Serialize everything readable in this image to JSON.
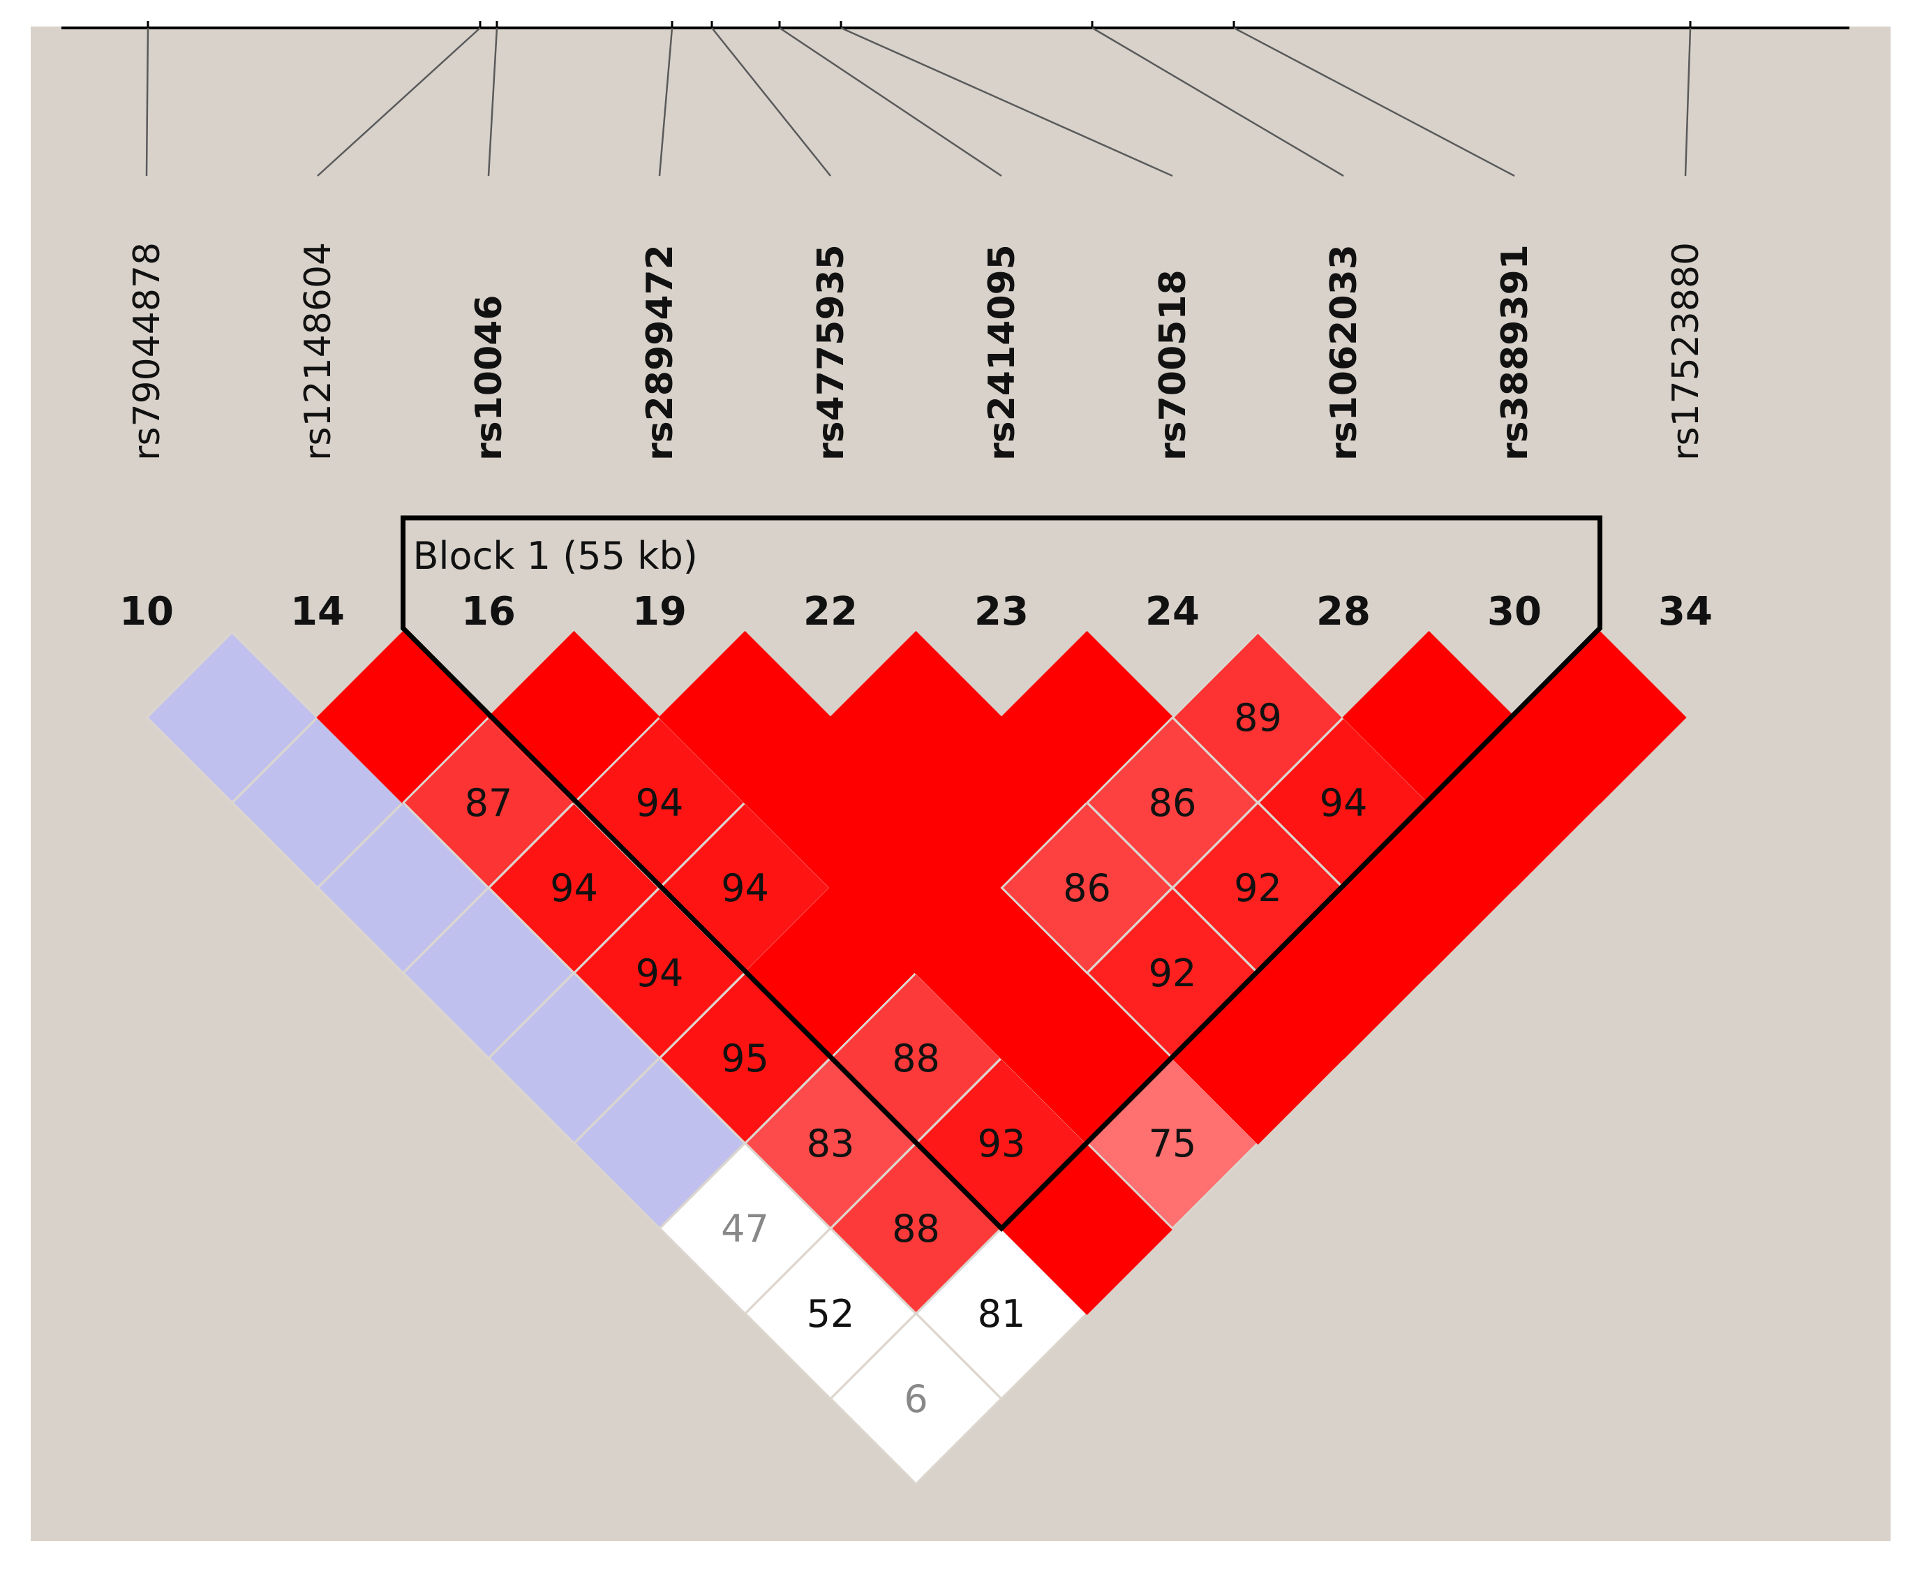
{
  "snps": [
    {
      "name": "rs79044878",
      "index": "10",
      "in_block": false
    },
    {
      "name": "rs12148604",
      "index": "14",
      "in_block": false
    },
    {
      "name": "rs10046",
      "index": "16",
      "in_block": true
    },
    {
      "name": "rs2899472",
      "index": "19",
      "in_block": true
    },
    {
      "name": "rs4775935",
      "index": "22",
      "in_block": true
    },
    {
      "name": "rs2414095",
      "index": "23",
      "in_block": true
    },
    {
      "name": "rs700518",
      "index": "24",
      "in_block": true
    },
    {
      "name": "rs1062033",
      "index": "28",
      "in_block": true
    },
    {
      "name": "rs3889391",
      "index": "30",
      "in_block": true
    },
    {
      "name": "rs17523880",
      "index": "34",
      "in_block": false
    }
  ],
  "block": {
    "label": "Block 1 (55 kb)",
    "first": 2,
    "last": 8
  },
  "colors": {
    "background": "#d8d2cb",
    "strong_ld": "#ff0000",
    "low_lod": "#c0c0ee",
    "weak": "#ffffff",
    "value_light": "#888888",
    "value_dark": "#111111"
  },
  "ld_cells": [
    {
      "i": 0,
      "j": 1,
      "c": "low_lod"
    },
    {
      "i": 0,
      "j": 2,
      "c": "low_lod"
    },
    {
      "i": 0,
      "j": 3,
      "c": "low_lod"
    },
    {
      "i": 0,
      "j": 4,
      "c": "low_lod"
    },
    {
      "i": 0,
      "j": 5,
      "c": "low_lod"
    },
    {
      "i": 0,
      "j": 6,
      "c": "low_lod"
    },
    {
      "i": 0,
      "j": 7,
      "c": "weak",
      "v": "47",
      "vc": "value_light"
    },
    {
      "i": 0,
      "j": 8,
      "c": "weak",
      "v": "52",
      "vc": "value_dark"
    },
    {
      "i": 0,
      "j": 9,
      "c": "weak",
      "v": "6",
      "vc": "value_light"
    },
    {
      "i": 1,
      "j": 2,
      "c": "strong_ld"
    },
    {
      "i": 1,
      "j": 3,
      "c": "#fd3434",
      "v": "87"
    },
    {
      "i": 1,
      "j": 4,
      "c": "#ff1414",
      "v": "94"
    },
    {
      "i": 1,
      "j": 5,
      "c": "#ff1414",
      "v": "94"
    },
    {
      "i": 1,
      "j": 6,
      "c": "#ff1212",
      "v": "95"
    },
    {
      "i": 1,
      "j": 7,
      "c": "#fd4b4b",
      "v": "83"
    },
    {
      "i": 1,
      "j": 8,
      "c": "#fd3a3a",
      "v": "88"
    },
    {
      "i": 1,
      "j": 9,
      "c": "weak",
      "v": "81",
      "vc": "value_dark"
    },
    {
      "i": 2,
      "j": 3,
      "c": "strong_ld"
    },
    {
      "i": 2,
      "j": 4,
      "c": "#ff1414",
      "v": "94"
    },
    {
      "i": 2,
      "j": 5,
      "c": "#ff1414",
      "v": "94"
    },
    {
      "i": 2,
      "j": 6,
      "c": "strong_ld"
    },
    {
      "i": 2,
      "j": 7,
      "c": "#fd3a3a",
      "v": "88"
    },
    {
      "i": 2,
      "j": 8,
      "c": "#ff1818",
      "v": "93"
    },
    {
      "i": 2,
      "j": 9,
      "c": "strong_ld"
    },
    {
      "i": 3,
      "j": 4,
      "c": "strong_ld"
    },
    {
      "i": 3,
      "j": 5,
      "c": "strong_ld"
    },
    {
      "i": 3,
      "j": 6,
      "c": "strong_ld"
    },
    {
      "i": 3,
      "j": 7,
      "c": "strong_ld"
    },
    {
      "i": 3,
      "j": 8,
      "c": "strong_ld"
    },
    {
      "i": 3,
      "j": 9,
      "c": "#ff7070",
      "v": "75"
    },
    {
      "i": 4,
      "j": 5,
      "c": "strong_ld"
    },
    {
      "i": 4,
      "j": 6,
      "c": "strong_ld"
    },
    {
      "i": 4,
      "j": 7,
      "c": "#fd4040",
      "v": "86"
    },
    {
      "i": 4,
      "j": 8,
      "c": "#ff2020",
      "v": "92"
    },
    {
      "i": 4,
      "j": 9,
      "c": "strong_ld"
    },
    {
      "i": 5,
      "j": 6,
      "c": "strong_ld"
    },
    {
      "i": 5,
      "j": 7,
      "c": "#fd4040",
      "v": "86"
    },
    {
      "i": 5,
      "j": 8,
      "c": "#ff2020",
      "v": "92"
    },
    {
      "i": 5,
      "j": 9,
      "c": "strong_ld"
    },
    {
      "i": 6,
      "j": 7,
      "c": "#fd3232",
      "v": "89"
    },
    {
      "i": 6,
      "j": 8,
      "c": "#ff1414",
      "v": "94"
    },
    {
      "i": 6,
      "j": 9,
      "c": "strong_ld"
    },
    {
      "i": 7,
      "j": 8,
      "c": "strong_ld"
    },
    {
      "i": 7,
      "j": 9,
      "c": "strong_ld"
    },
    {
      "i": 8,
      "j": 9,
      "c": "strong_ld"
    }
  ]
}
